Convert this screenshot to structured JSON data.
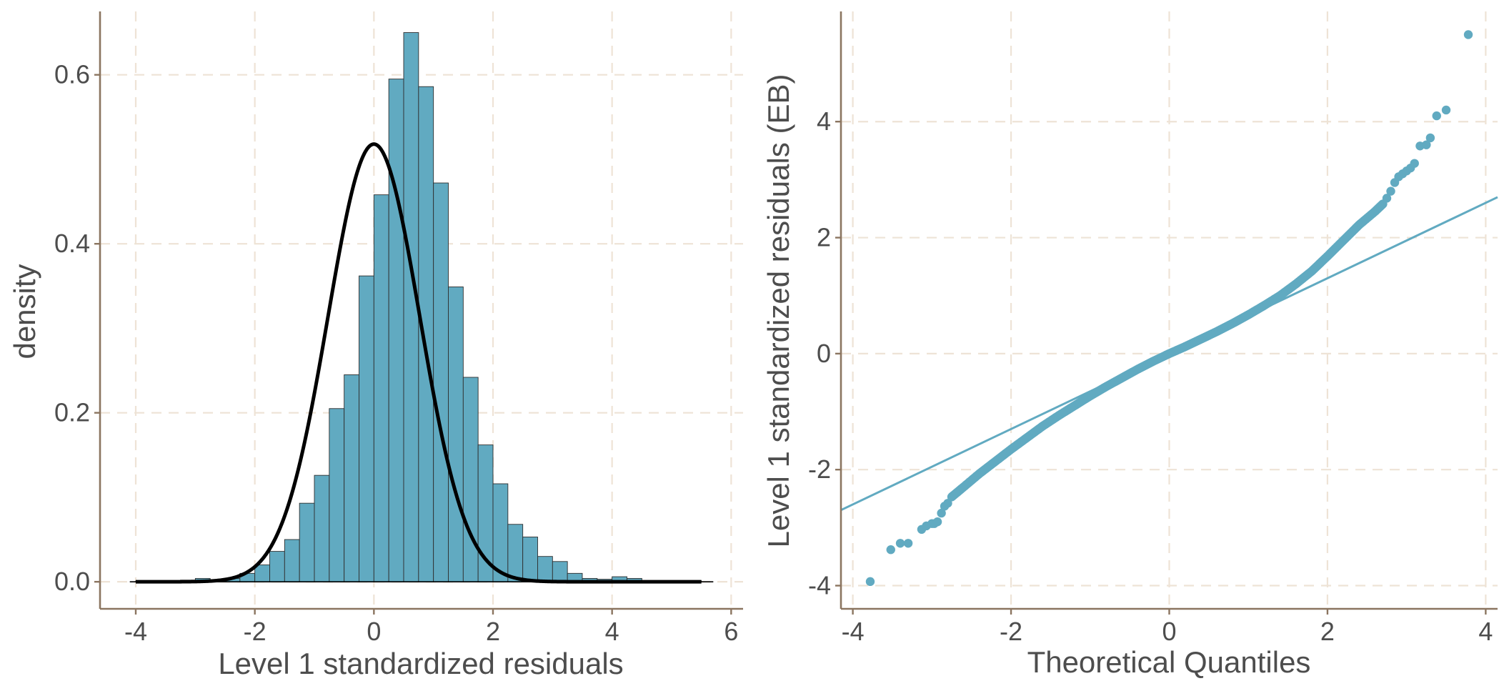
{
  "colors": {
    "accent": "#61aac1",
    "curve": "#000000",
    "grid": "#eee3d6",
    "axis": "#8b7560",
    "text": "#4d4d4d"
  },
  "chart_data": [
    {
      "type": "bar",
      "subtype": "histogram-with-density",
      "title": "",
      "xlabel": "Level 1 standardized residuals",
      "ylabel": "density",
      "xlim": [
        -4.6,
        6.2
      ],
      "ylim": [
        -0.032,
        0.675
      ],
      "xticks": [
        -4,
        -2,
        0,
        2,
        4,
        6
      ],
      "yticks": [
        0.0,
        0.2,
        0.4,
        0.6
      ],
      "xtick_labels": [
        "-4",
        "-2",
        "0",
        "2",
        "4",
        "6"
      ],
      "ytick_labels": [
        "0.0",
        "0.2",
        "0.4",
        "0.6"
      ],
      "grid": true,
      "bin_width": 0.25,
      "bin_starts": [
        -4.0,
        -3.75,
        -3.5,
        -3.25,
        -3.0,
        -2.75,
        -2.5,
        -2.25,
        -2.0,
        -1.75,
        -1.5,
        -1.25,
        -1.0,
        -0.75,
        -0.5,
        -0.25,
        0.0,
        0.25,
        0.5,
        0.75,
        1.0,
        1.25,
        1.5,
        1.75,
        2.0,
        2.25,
        2.5,
        2.75,
        3.0,
        3.25,
        3.5,
        3.75,
        4.0,
        4.25,
        4.5,
        4.75,
        5.0,
        5.25
      ],
      "values": [
        0.001,
        0.001,
        0.001,
        0.002,
        0.004,
        0.002,
        0.004,
        0.01,
        0.02,
        0.036,
        0.05,
        0.093,
        0.126,
        0.205,
        0.245,
        0.362,
        0.458,
        0.595,
        0.65,
        0.586,
        0.472,
        0.349,
        0.242,
        0.162,
        0.116,
        0.068,
        0.053,
        0.03,
        0.024,
        0.01,
        0.004,
        0.003,
        0.006,
        0.004,
        0.001,
        0.001,
        0.001,
        0.001
      ],
      "density_curve": {
        "type": "normal",
        "mean": 0.0,
        "sd": 0.77,
        "x_range": [
          -4.0,
          5.5
        ],
        "peak": 0.518
      }
    },
    {
      "type": "scatter",
      "subtype": "qq-plot",
      "title": "",
      "xlabel": "Theoretical Quantiles",
      "ylabel": "Level 1 standardized residuals (EB)",
      "xlim": [
        -4.15,
        4.15
      ],
      "ylim": [
        -4.4,
        5.9
      ],
      "xticks": [
        -4,
        -2,
        0,
        2,
        4
      ],
      "yticks": [
        -4,
        -2,
        0,
        2,
        4
      ],
      "xtick_labels": [
        "-4",
        "-2",
        "0",
        "2",
        "4"
      ],
      "ytick_labels": [
        "-4",
        "-2",
        "0",
        "2",
        "4"
      ],
      "grid": true,
      "reference_line": {
        "intercept": 0.0,
        "slope": 0.65
      },
      "tail_points": [
        {
          "x": -3.78,
          "y": -3.93
        },
        {
          "x": -3.52,
          "y": -3.38
        },
        {
          "x": -3.4,
          "y": -3.27
        },
        {
          "x": -3.3,
          "y": -3.27
        },
        {
          "x": -3.13,
          "y": -3.03
        },
        {
          "x": -3.07,
          "y": -2.97
        },
        {
          "x": -3.0,
          "y": -2.93
        },
        {
          "x": -2.97,
          "y": -2.93
        },
        {
          "x": -2.93,
          "y": -2.9
        },
        {
          "x": -2.88,
          "y": -2.75
        },
        {
          "x": -2.84,
          "y": -2.63
        },
        {
          "x": -2.8,
          "y": -2.58
        },
        {
          "x": 2.75,
          "y": 2.68
        },
        {
          "x": 2.8,
          "y": 2.8
        },
        {
          "x": 2.85,
          "y": 2.95
        },
        {
          "x": 2.9,
          "y": 3.05
        },
        {
          "x": 2.95,
          "y": 3.1
        },
        {
          "x": 3.0,
          "y": 3.15
        },
        {
          "x": 3.05,
          "y": 3.2
        },
        {
          "x": 3.1,
          "y": 3.28
        },
        {
          "x": 3.17,
          "y": 3.58
        },
        {
          "x": 3.25,
          "y": 3.6
        },
        {
          "x": 3.3,
          "y": 3.72
        },
        {
          "x": 3.38,
          "y": 4.1
        },
        {
          "x": 3.5,
          "y": 4.2
        },
        {
          "x": 3.78,
          "y": 5.5
        }
      ],
      "dense_curve": [
        {
          "x": -2.75,
          "y": -2.47
        },
        {
          "x": -2.6,
          "y": -2.3
        },
        {
          "x": -2.4,
          "y": -2.07
        },
        {
          "x": -2.2,
          "y": -1.86
        },
        {
          "x": -2.0,
          "y": -1.65
        },
        {
          "x": -1.8,
          "y": -1.45
        },
        {
          "x": -1.6,
          "y": -1.25
        },
        {
          "x": -1.4,
          "y": -1.07
        },
        {
          "x": -1.2,
          "y": -0.9
        },
        {
          "x": -1.0,
          "y": -0.73
        },
        {
          "x": -0.8,
          "y": -0.57
        },
        {
          "x": -0.6,
          "y": -0.42
        },
        {
          "x": -0.4,
          "y": -0.27
        },
        {
          "x": -0.2,
          "y": -0.13
        },
        {
          "x": 0.0,
          "y": 0.0
        },
        {
          "x": 0.2,
          "y": 0.12
        },
        {
          "x": 0.4,
          "y": 0.25
        },
        {
          "x": 0.6,
          "y": 0.38
        },
        {
          "x": 0.8,
          "y": 0.52
        },
        {
          "x": 1.0,
          "y": 0.67
        },
        {
          "x": 1.2,
          "y": 0.83
        },
        {
          "x": 1.4,
          "y": 1.0
        },
        {
          "x": 1.6,
          "y": 1.2
        },
        {
          "x": 1.8,
          "y": 1.42
        },
        {
          "x": 2.0,
          "y": 1.68
        },
        {
          "x": 2.2,
          "y": 1.95
        },
        {
          "x": 2.4,
          "y": 2.22
        },
        {
          "x": 2.6,
          "y": 2.45
        },
        {
          "x": 2.7,
          "y": 2.58
        }
      ]
    }
  ]
}
